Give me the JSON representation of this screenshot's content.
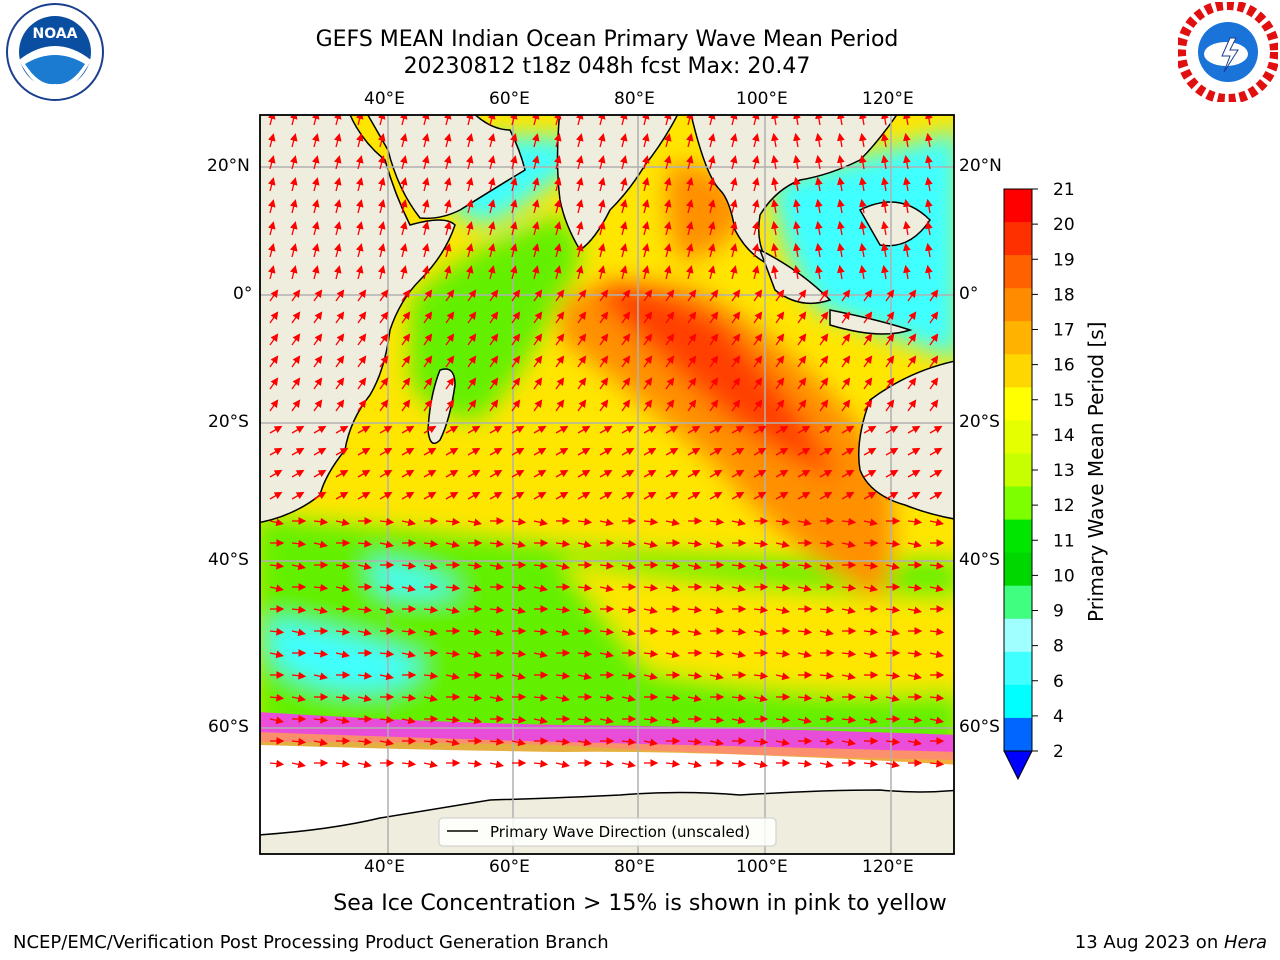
{
  "title_line1": "GEFS MEAN Indian Ocean Primary Wave Mean Period",
  "title_line2": "20230812 t18z 048h fcst   Max: 20.47",
  "subtitle": "Sea Ice Concentration > 15% is shown in pink to yellow",
  "footer_left": "NCEP/EMC/Verification Post Processing Product Generation Branch",
  "footer_right_date": "13 Aug 2023 on ",
  "footer_right_host": "Hera",
  "logos": {
    "left": "noaa-logo",
    "right": "nws-logo"
  },
  "map": {
    "lon_ticks": [
      "40°E",
      "60°E",
      "80°E",
      "100°E",
      "120°E"
    ],
    "lat_ticks": [
      "20°N",
      "0°",
      "20°S",
      "40°S",
      "60°S"
    ],
    "legend_label": "Primary Wave Direction (unscaled)",
    "arrow_color": "#ff0000",
    "land_color": "#efedde",
    "ocean_colors": {
      "long_period": "#ff4000",
      "high": "#ff9000",
      "mid": "#ffe600",
      "low": "#63f000",
      "short": "#40ffff",
      "ice": "#ff30ff"
    }
  },
  "colorbar": {
    "label": "Primary Wave Mean Period [s]",
    "ticks": [
      "21",
      "20",
      "19",
      "18",
      "17",
      "16",
      "15",
      "14",
      "13",
      "12",
      "11",
      "10",
      "9",
      "8",
      "6",
      "4",
      "2"
    ],
    "colors": [
      "#ff0000",
      "#ff3000",
      "#ff6000",
      "#ff8c00",
      "#ffb300",
      "#ffd700",
      "#ffff00",
      "#e6ff00",
      "#c8ff00",
      "#7dff00",
      "#00e600",
      "#00d600",
      "#40ff80",
      "#a0ffff",
      "#40ffff",
      "#00ffff",
      "#0066ff"
    ],
    "extend_color": "#0000ff"
  }
}
